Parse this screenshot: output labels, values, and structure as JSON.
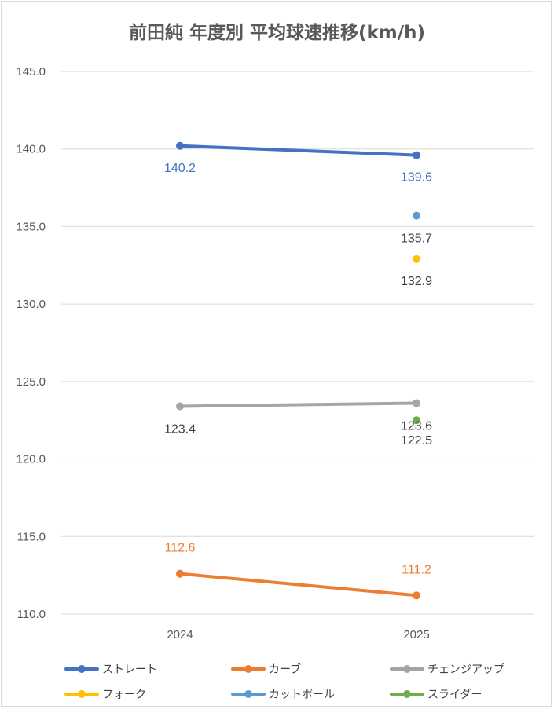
{
  "chart_data": {
    "type": "line",
    "title": "前田純 年度別 平均球速推移(km/h)",
    "categories": [
      "2024",
      "2025"
    ],
    "ylim": [
      110,
      145
    ],
    "yticks": [
      "110.0",
      "115.0",
      "120.0",
      "125.0",
      "130.0",
      "135.0",
      "140.0",
      "145.0"
    ],
    "grid": true,
    "legend_position": "bottom",
    "series": [
      {
        "name": "ストレート",
        "color": "#4472c4",
        "values": [
          140.2,
          139.6
        ],
        "labels": [
          "140.2",
          "139.6"
        ]
      },
      {
        "name": "カーブ",
        "color": "#ed7d31",
        "values": [
          112.6,
          111.2
        ],
        "labels": [
          "112.6",
          "111.2"
        ]
      },
      {
        "name": "チェンジアップ",
        "color": "#a5a5a5",
        "values": [
          123.4,
          123.6
        ],
        "labels": [
          "123.4",
          "123.6"
        ]
      },
      {
        "name": "フォーク",
        "color": "#ffc000",
        "values": [
          null,
          132.9
        ],
        "labels": [
          null,
          "132.9"
        ]
      },
      {
        "name": "カットボール",
        "color": "#5b9bd5",
        "values": [
          null,
          135.7
        ],
        "labels": [
          null,
          "135.7"
        ]
      },
      {
        "name": "スライダー",
        "color": "#70ad47",
        "values": [
          null,
          122.5
        ],
        "labels": [
          null,
          "122.5"
        ]
      }
    ]
  }
}
